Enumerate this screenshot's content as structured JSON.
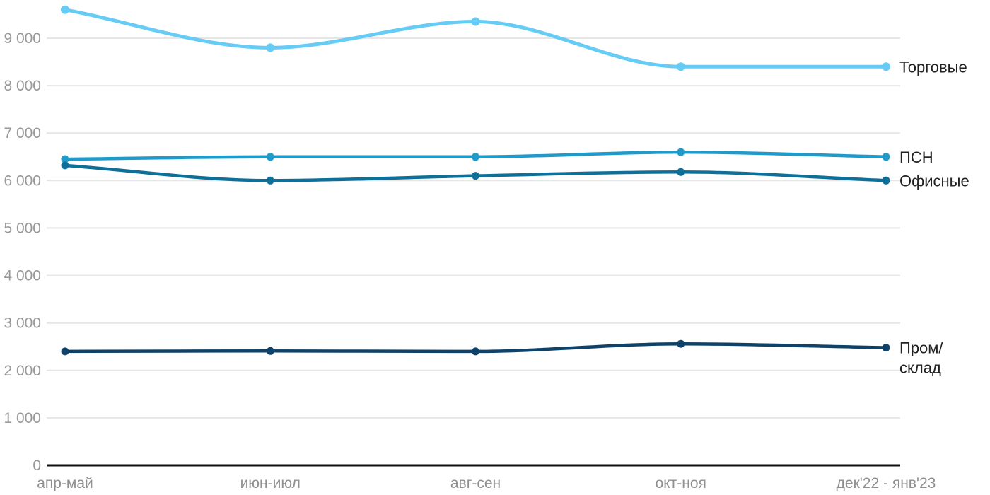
{
  "chart_data": {
    "type": "line",
    "categories": [
      "апр-май",
      "июн-июл",
      "авг-сен",
      "окт-ноя",
      "дек'22 - янв'23"
    ],
    "series": [
      {
        "name": "Торговые",
        "color": "#66ccf5",
        "values": [
          9600,
          8800,
          9350,
          8400,
          8400
        ],
        "label_lines": [
          "Торговые"
        ]
      },
      {
        "name": "ПСН",
        "color": "#1f9ac9",
        "values": [
          6450,
          6500,
          6500,
          6600,
          6500
        ],
        "label_lines": [
          "ПСН"
        ]
      },
      {
        "name": "Офисные",
        "color": "#0e6f99",
        "values": [
          6320,
          6000,
          6100,
          6180,
          6000
        ],
        "label_lines": [
          "Офисные"
        ]
      },
      {
        "name": "Пром/склад",
        "color": "#0f4269",
        "values": [
          2400,
          2410,
          2400,
          2560,
          2480
        ],
        "label_lines": [
          "Пром/",
          "склад"
        ]
      }
    ],
    "yticks": [
      0,
      1000,
      2000,
      3000,
      4000,
      5000,
      6000,
      7000,
      8000,
      9000
    ],
    "ytick_labels": [
      "0",
      "1 000",
      "2 000",
      "3 000",
      "4 000",
      "5 000",
      "6 000",
      "7 000",
      "8 000",
      "9 000"
    ],
    "ylim": [
      0,
      9800
    ],
    "xlabel": "",
    "ylabel": "",
    "title": "",
    "grid": true,
    "legend_position": "right-inline-labels",
    "colors": {
      "gridline": "#e6e6e6",
      "axis_line": "#111111",
      "ytick_text": "#989898",
      "xtick_text": "#8f8f8f",
      "series_label_text": "#222222",
      "background": "#ffffff"
    }
  }
}
